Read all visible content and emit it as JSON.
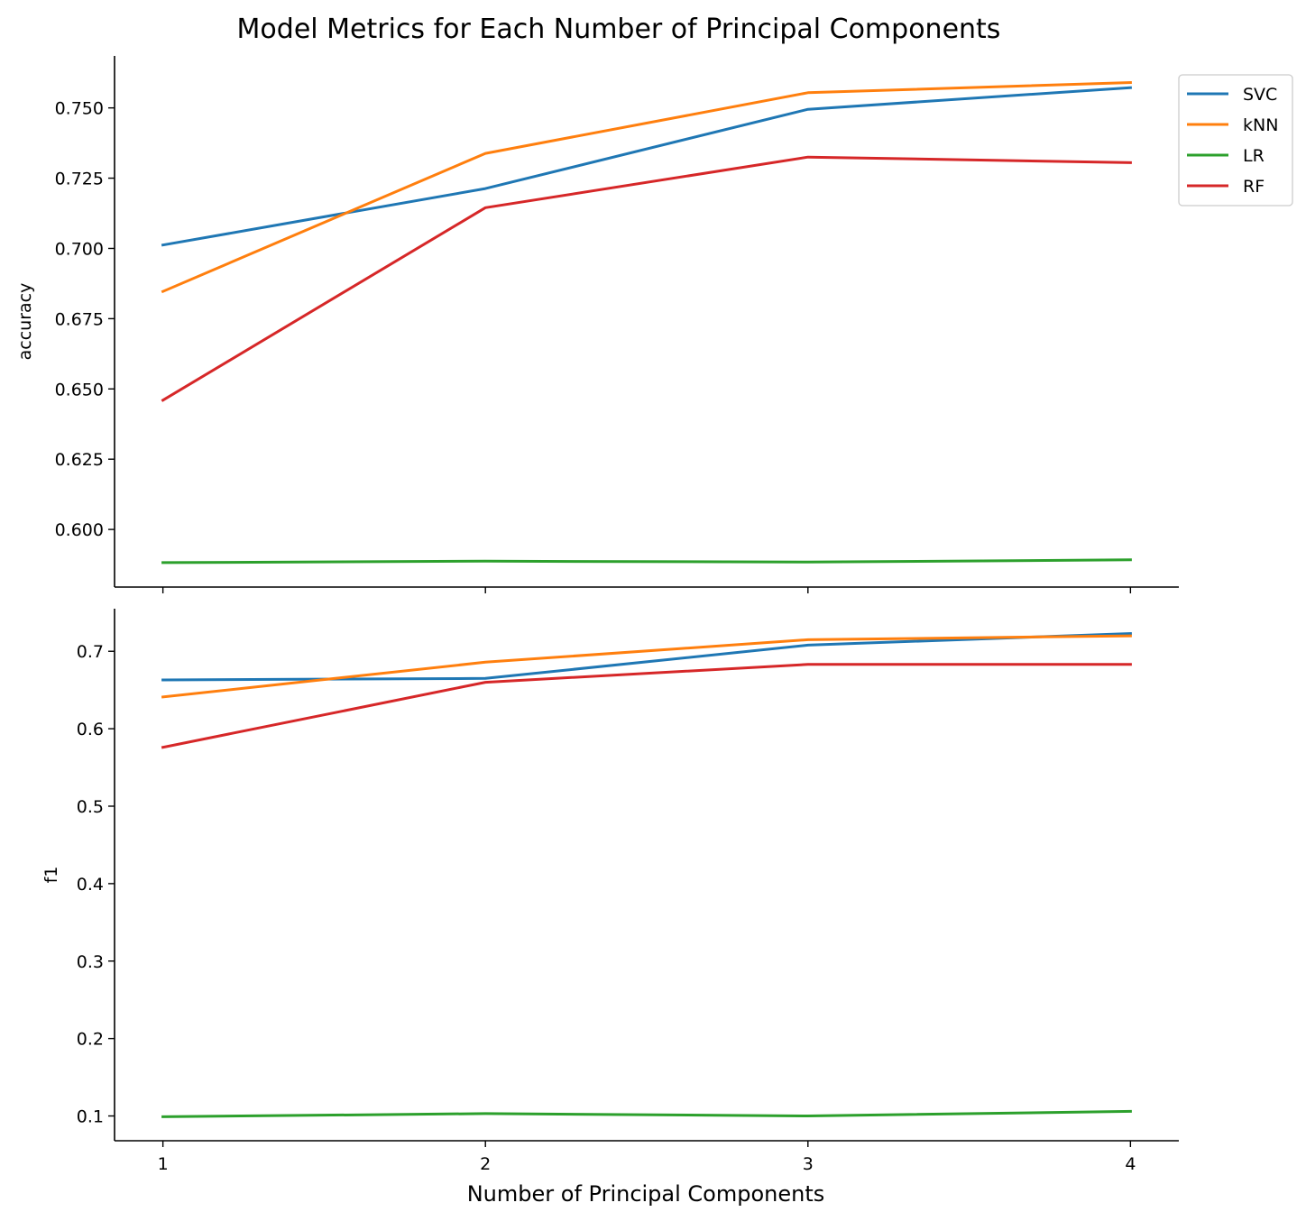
{
  "title": "Model Metrics for Each Number of Principal Components",
  "chart_data": {
    "type": "line",
    "title": "Model Metrics for Each Number of Principal Components",
    "xlabel": "Number of Principal Components",
    "x": [
      1,
      2,
      3,
      4
    ],
    "xlim": [
      0.85,
      4.15
    ],
    "legend_position": "top-right",
    "grid": false,
    "colors": {
      "SVC": "#1f77b4",
      "kNN": "#ff7f0e",
      "LR": "#2ca02c",
      "RF": "#d62728"
    },
    "panels": [
      {
        "ylabel": "accuracy",
        "ylim": [
          0.5795,
          0.7685
        ],
        "yticks": [
          0.6,
          0.625,
          0.65,
          0.675,
          0.7,
          0.725,
          0.75
        ],
        "ytick_labels": [
          "0.600",
          "0.625",
          "0.650",
          "0.675",
          "0.700",
          "0.725",
          "0.750"
        ],
        "series": [
          {
            "name": "SVC",
            "values": [
              0.7012,
              0.7213,
              0.7495,
              0.7572
            ]
          },
          {
            "name": "kNN",
            "values": [
              0.6847,
              0.7338,
              0.7554,
              0.759
            ]
          },
          {
            "name": "LR",
            "values": [
              0.5882,
              0.5887,
              0.5884,
              0.5892
            ]
          },
          {
            "name": "RF",
            "values": [
              0.646,
              0.7145,
              0.7325,
              0.7305
            ]
          }
        ]
      },
      {
        "ylabel": "f1",
        "ylim": [
          0.068,
          0.755
        ],
        "yticks": [
          0.1,
          0.2,
          0.3,
          0.4,
          0.5,
          0.6,
          0.7
        ],
        "ytick_labels": [
          "0.1",
          "0.2",
          "0.3",
          "0.4",
          "0.5",
          "0.6",
          "0.7"
        ],
        "series": [
          {
            "name": "SVC",
            "values": [
              0.663,
              0.665,
              0.708,
              0.723
            ]
          },
          {
            "name": "kNN",
            "values": [
              0.641,
              0.686,
              0.715,
              0.72
            ]
          },
          {
            "name": "LR",
            "values": [
              0.099,
              0.103,
              0.1,
              0.106
            ]
          },
          {
            "name": "RF",
            "values": [
              0.576,
              0.66,
              0.683,
              0.683
            ]
          }
        ]
      }
    ],
    "xtick_labels": [
      "1",
      "2",
      "3",
      "4"
    ],
    "legend": [
      "SVC",
      "kNN",
      "LR",
      "RF"
    ]
  }
}
